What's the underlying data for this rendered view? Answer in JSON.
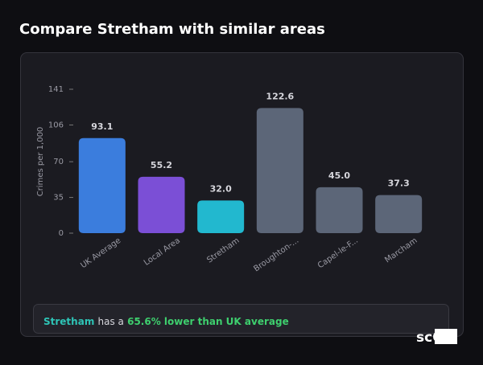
{
  "header": {
    "title": "Compare Stretham with similar areas"
  },
  "chart_data": {
    "type": "bar",
    "y_label": "Crimes per 1,000",
    "categories": [
      "UK Average",
      "Local Area",
      "Stretham",
      "Broughton-...",
      "Capel-le-F...",
      "Marcham"
    ],
    "values": [
      93.1,
      55.2,
      32.0,
      122.6,
      45.0,
      37.3
    ],
    "value_labels": [
      "93.1",
      "55.2",
      "32.0",
      "122.6",
      "45.0",
      "37.3"
    ],
    "colors": [
      "#3b7ddd",
      "#7b4fd6",
      "#22b8cf",
      "#5c6678",
      "#5c6678",
      "#5c6678"
    ],
    "ylim": [
      0,
      141
    ],
    "yticks": [
      0,
      35,
      70,
      106,
      141
    ],
    "grid": false
  },
  "summary": {
    "area": "Stretham",
    "text": "has a",
    "comparison": "65.6% lower than UK average"
  },
  "logo": "scOS"
}
